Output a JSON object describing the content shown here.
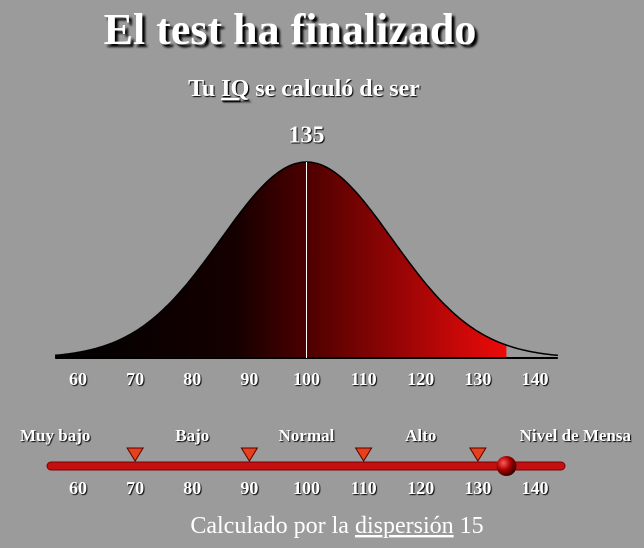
{
  "title": "El test ha finalizado",
  "subtitle": {
    "before": "Tu",
    "link": "IQ",
    "after": "se calculó de ser"
  },
  "score": 135,
  "curve": {
    "mean": 100,
    "sd": 15,
    "xlim": [
      56,
      144
    ],
    "xticks": [
      60,
      70,
      80,
      90,
      100,
      110,
      120,
      130,
      140
    ]
  },
  "scale": {
    "markers": [
      70,
      90,
      110,
      130
    ],
    "levels": [
      "Muy bajo",
      "Bajo",
      "Normal",
      "Alto",
      "Nivel de Mensa"
    ]
  },
  "footer": {
    "before": "Calculado por la",
    "link": "dispersión"
  }
}
